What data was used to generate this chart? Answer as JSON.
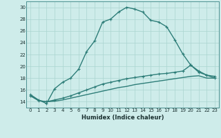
{
  "xlabel": "Humidex (Indice chaleur)",
  "ylabel": "",
  "x": [
    0,
    1,
    2,
    3,
    4,
    5,
    6,
    7,
    8,
    9,
    10,
    11,
    12,
    13,
    14,
    15,
    16,
    17,
    18,
    19,
    20,
    21,
    22,
    23
  ],
  "line1": [
    15.2,
    14.3,
    13.7,
    16.2,
    17.3,
    18.0,
    19.5,
    22.5,
    24.3,
    27.5,
    28.0,
    29.2,
    30.0,
    29.7,
    29.2,
    27.8,
    27.5,
    26.7,
    24.5,
    22.1,
    20.2,
    19.0,
    18.5,
    18.0
  ],
  "line2": [
    15.0,
    14.2,
    14.0,
    14.3,
    14.6,
    15.0,
    15.5,
    16.0,
    16.5,
    17.0,
    17.3,
    17.6,
    17.9,
    18.1,
    18.3,
    18.5,
    18.7,
    18.8,
    19.0,
    19.2,
    20.2,
    19.2,
    18.5,
    18.3
  ],
  "line3": [
    15.0,
    14.2,
    14.0,
    14.1,
    14.3,
    14.6,
    14.9,
    15.2,
    15.5,
    15.8,
    16.1,
    16.4,
    16.6,
    16.9,
    17.1,
    17.3,
    17.5,
    17.7,
    17.9,
    18.1,
    18.3,
    18.4,
    18.0,
    18.0
  ],
  "line_color": "#2d7d78",
  "bg_color": "#ceecea",
  "grid_color": "#aad4d0",
  "xlim": [
    -0.5,
    23.5
  ],
  "ylim": [
    13,
    31
  ],
  "yticks": [
    14,
    16,
    18,
    20,
    22,
    24,
    26,
    28,
    30
  ],
  "xticks": [
    0,
    1,
    2,
    3,
    4,
    5,
    6,
    7,
    8,
    9,
    10,
    11,
    12,
    13,
    14,
    15,
    16,
    17,
    18,
    19,
    20,
    21,
    22,
    23
  ],
  "marker": "+",
  "marker_size": 3,
  "line_width": 1.0
}
